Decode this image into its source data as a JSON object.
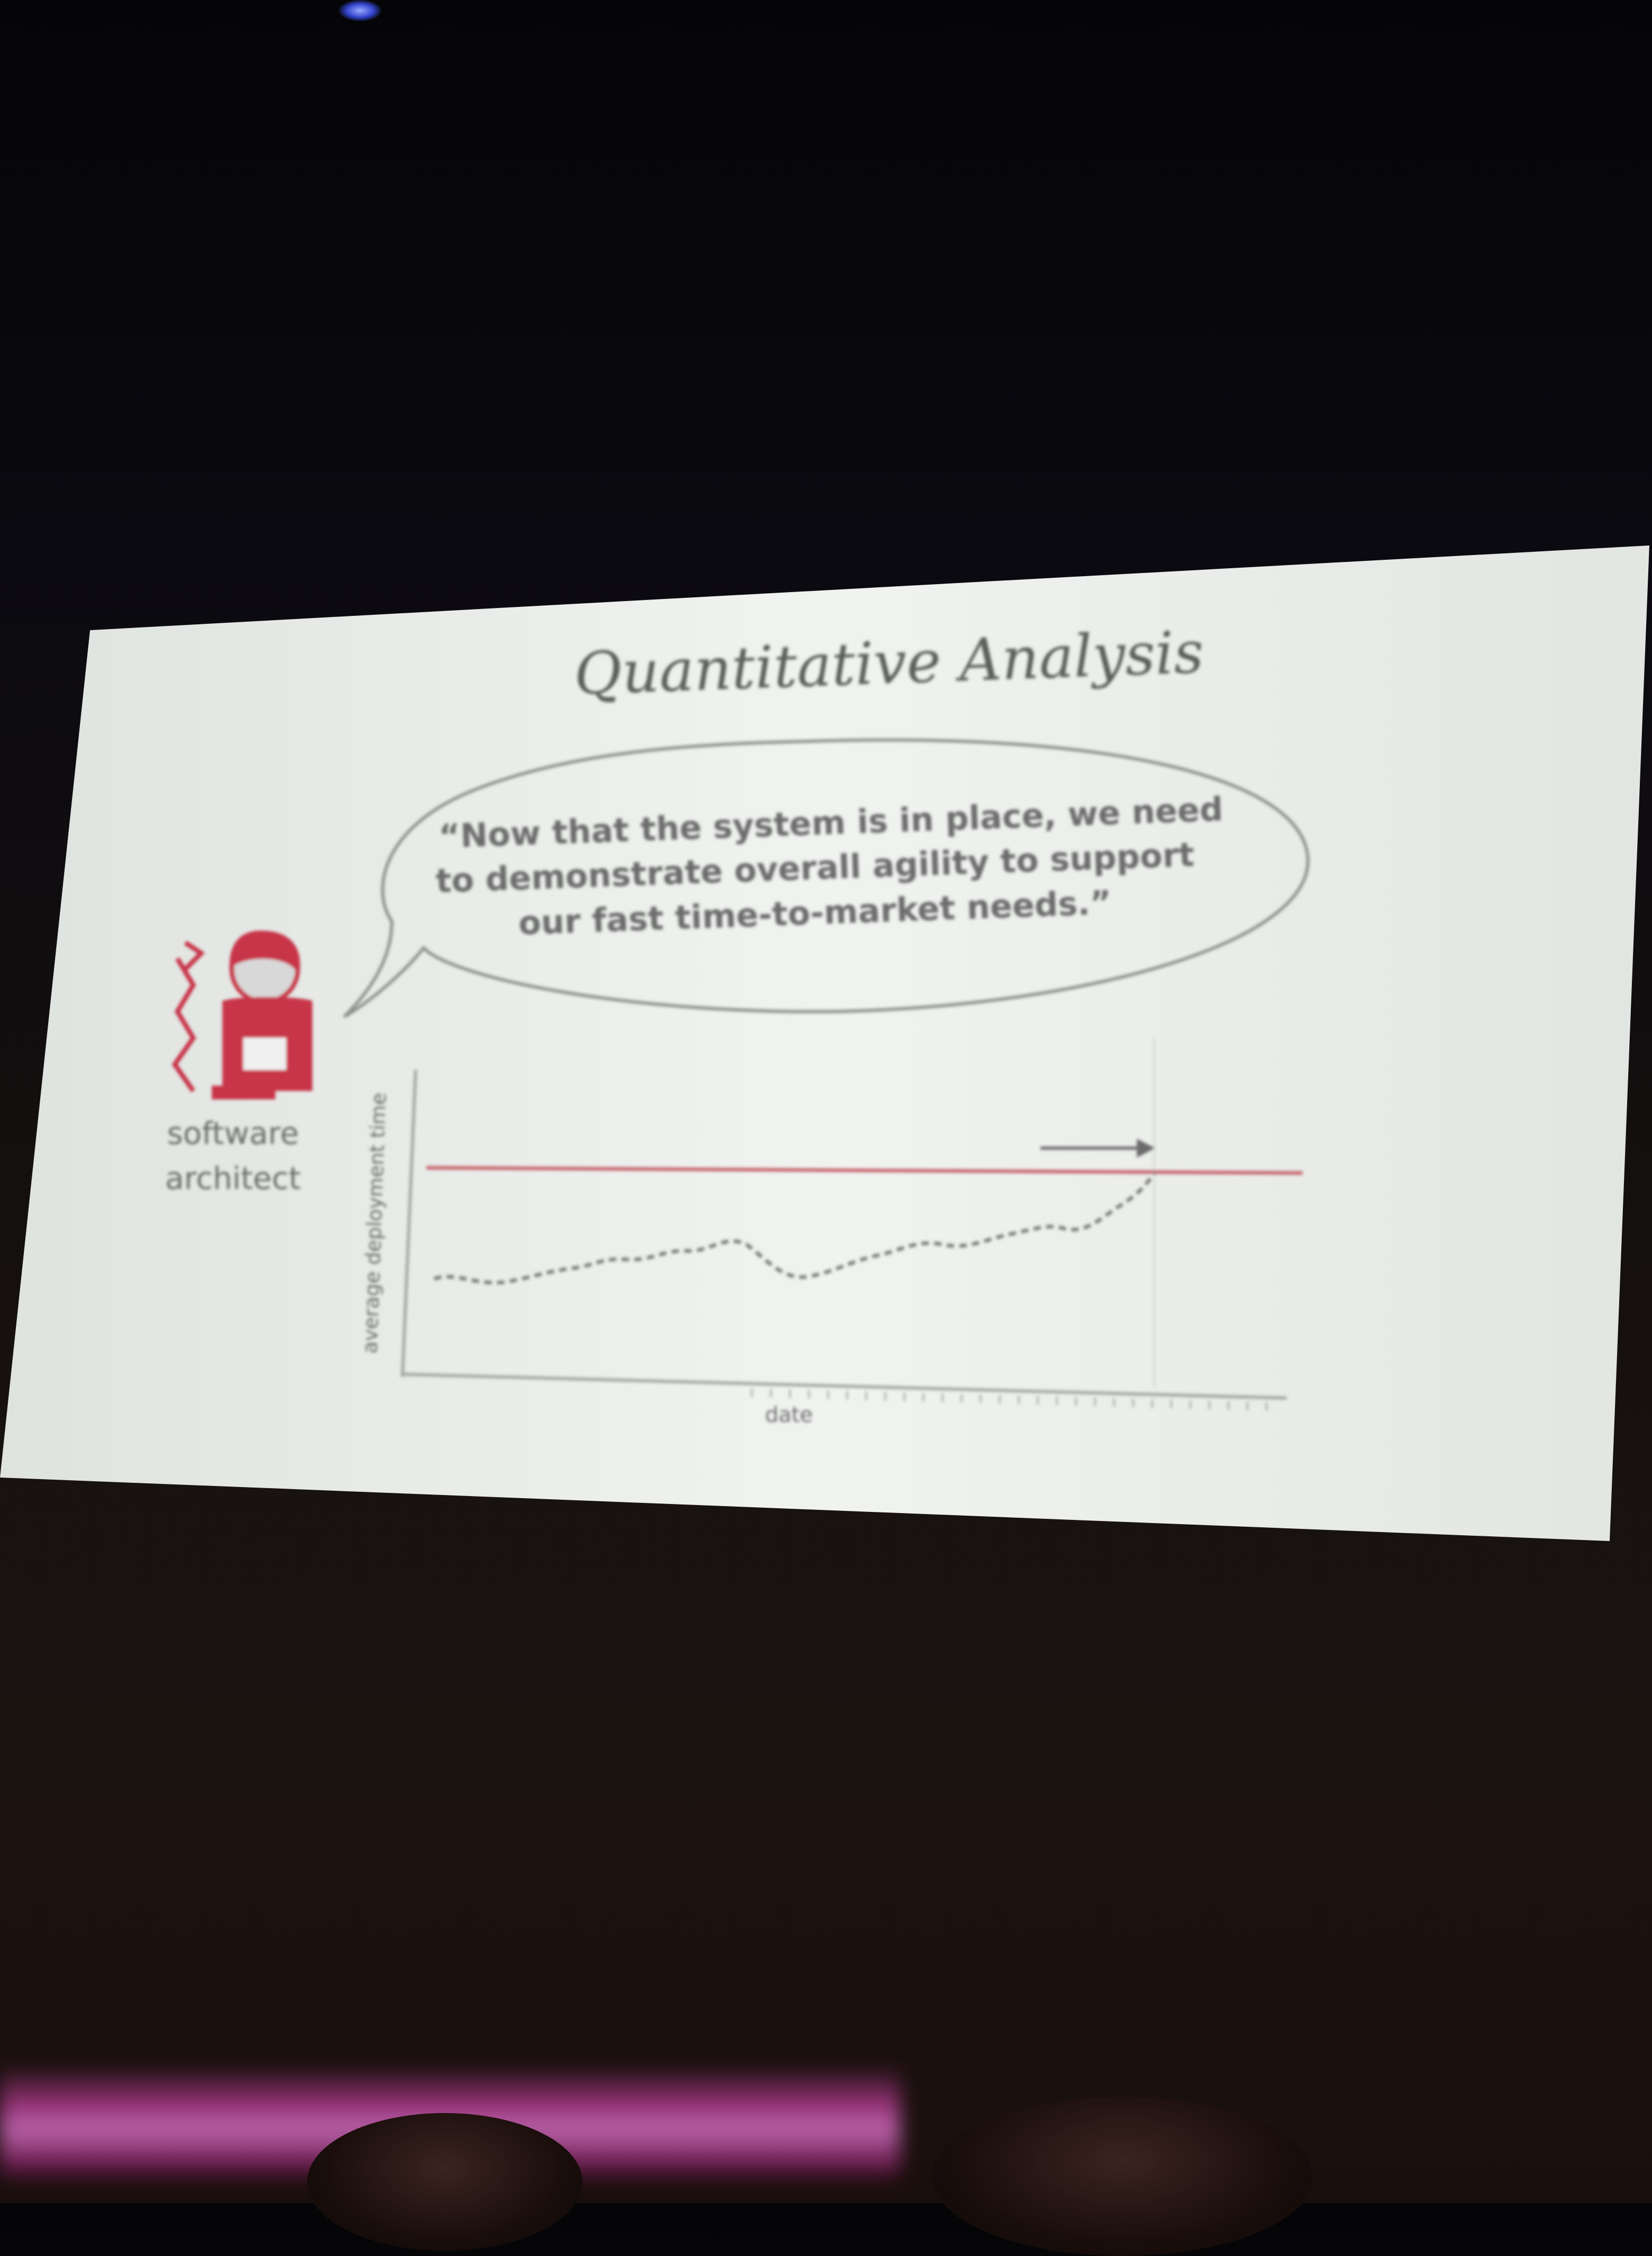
{
  "slide": {
    "title": "Quantitative Analysis",
    "quote_lines": [
      "“Now that the system is in place, we need",
      "to demonstrate overall agility to support",
      "our fast time-to-market needs.”"
    ],
    "role_lines": [
      "software",
      "architect"
    ],
    "chart": {
      "ylabel": "average deployment time",
      "xlabel": "date"
    }
  },
  "colors": {
    "slide": "#e8ebe8",
    "text": "#6a6c6a",
    "accent": "#c8354a",
    "target_line": "#c86a72",
    "stage_light": "#c050a8"
  }
}
